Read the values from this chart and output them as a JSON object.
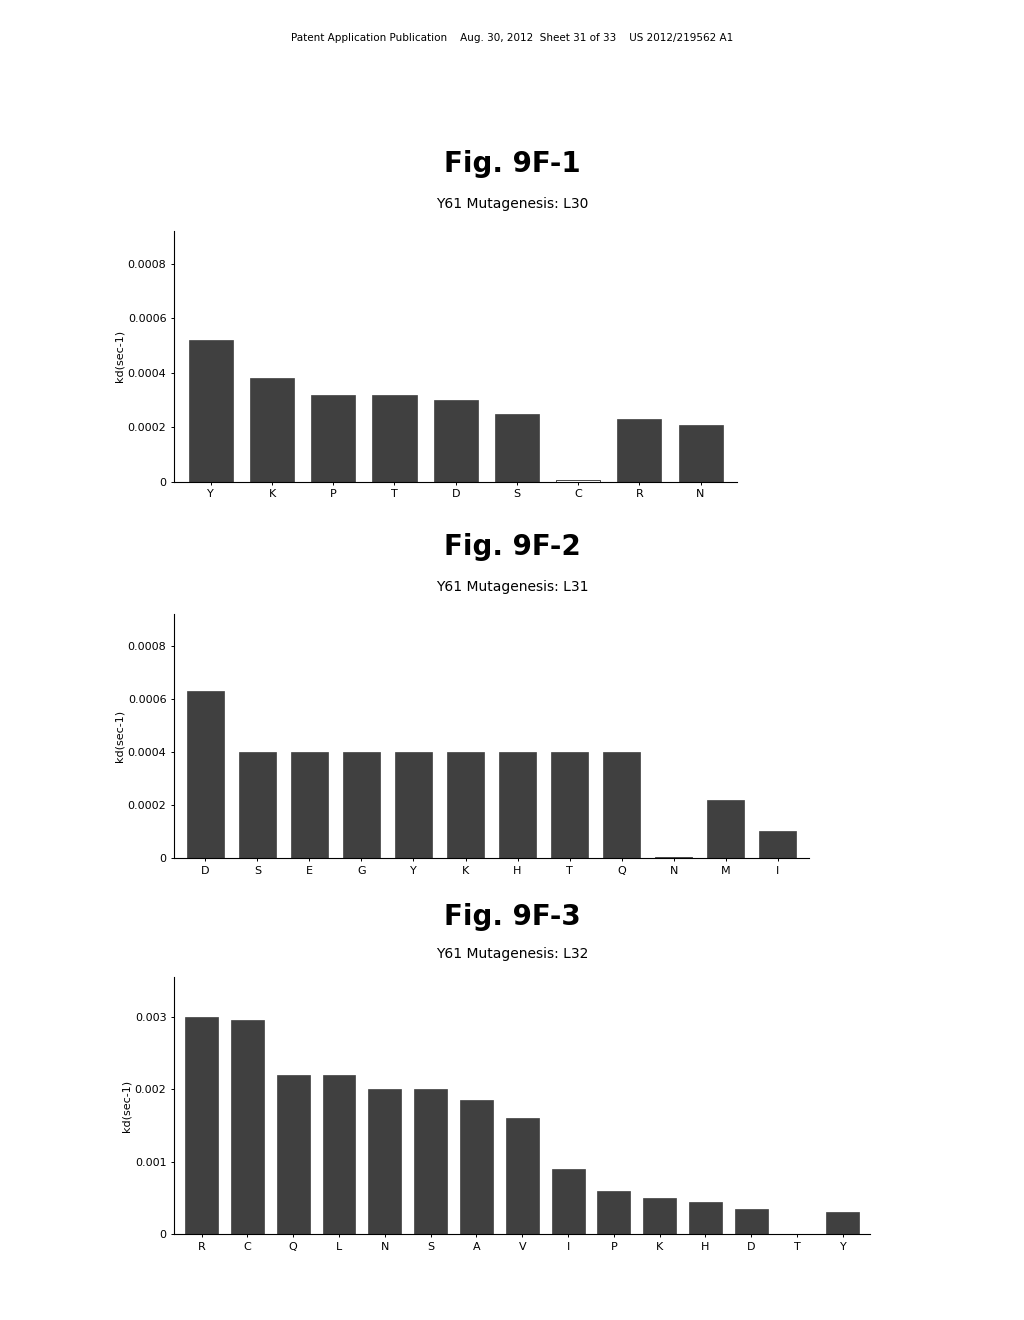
{
  "background_color": "#ffffff",
  "header_text": "Patent Application Publication    Aug. 30, 2012  Sheet 31 of 33    US 2012/219562 A1",
  "fig1": {
    "title": "Fig. 9F-1",
    "subtitle": "Y61 Mutagenesis: L30",
    "categories": [
      "Y",
      "K",
      "P",
      "T",
      "D",
      "S",
      "C",
      "R",
      "N"
    ],
    "values": [
      0.00052,
      0.00038,
      0.00032,
      0.00032,
      0.0003,
      0.00025,
      5e-06,
      0.00023,
      0.00021
    ],
    "white_bar_index": 6,
    "ylim": [
      0,
      0.00092
    ],
    "yticks": [
      0,
      0.0002,
      0.0004,
      0.0006,
      0.0008
    ],
    "ytick_labels": [
      "0",
      "0.0002",
      "0.0004",
      "0.0006",
      "0.0008"
    ],
    "ylabel": "kd(sec-1)"
  },
  "fig2": {
    "title": "Fig. 9F-2",
    "subtitle": "Y61 Mutagenesis: L31",
    "categories": [
      "D",
      "S",
      "E",
      "G",
      "Y",
      "K",
      "H",
      "T",
      "Q",
      "N",
      "M",
      "I"
    ],
    "values": [
      0.00063,
      0.0004,
      0.0004,
      0.0004,
      0.0004,
      0.0004,
      0.0004,
      0.0004,
      0.0004,
      5e-06,
      0.00022,
      0.0001
    ],
    "white_bar_index": 9,
    "ylim": [
      0,
      0.00092
    ],
    "yticks": [
      0,
      0.0002,
      0.0004,
      0.0006,
      0.0008
    ],
    "ytick_labels": [
      "0",
      "0.0002",
      "0.0004",
      "0.0006",
      "0.0008"
    ],
    "ylabel": "kd(sec-1)"
  },
  "fig3": {
    "title": "Fig. 9F-3",
    "subtitle": "Y61 Mutagenesis: L32",
    "categories": [
      "R",
      "C",
      "Q",
      "L",
      "N",
      "S",
      "A",
      "V",
      "I",
      "P",
      "K",
      "H",
      "D",
      "T",
      "Y"
    ],
    "values": [
      0.003,
      0.00295,
      0.0022,
      0.0022,
      0.002,
      0.002,
      0.00185,
      0.0016,
      0.0009,
      0.0006,
      0.0005,
      0.00045,
      0.00035,
      5e-06,
      0.0003
    ],
    "white_bar_index": 13,
    "ylim": [
      0,
      0.00355
    ],
    "yticks": [
      0,
      0.001,
      0.002,
      0.003
    ],
    "ytick_labels": [
      "0",
      "0.001",
      "0.002",
      "0.003"
    ],
    "ylabel": "kd(sec-1)"
  },
  "bar_color_dark": "#404040",
  "bar_color_white": "#ffffff",
  "bar_edge_color": "#000000",
  "title_fontsize": 20,
  "subtitle_fontsize": 10,
  "tick_fontsize": 8,
  "ylabel_fontsize": 8
}
